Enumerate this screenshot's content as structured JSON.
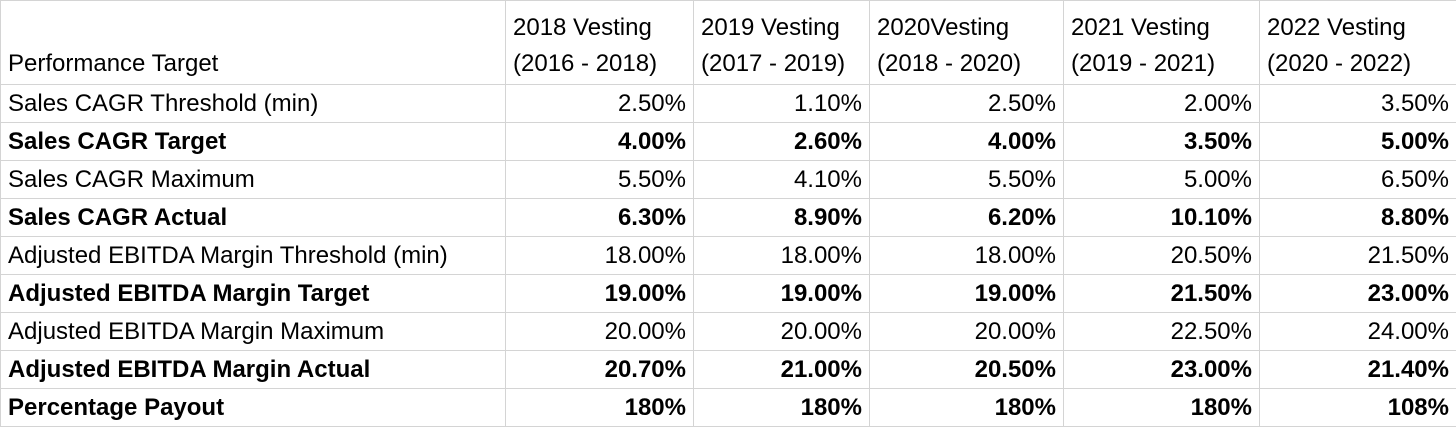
{
  "table": {
    "header": {
      "label": "Performance Target",
      "columns": [
        {
          "line1": "2018 Vesting",
          "line2": "(2016 - 2018)"
        },
        {
          "line1": "2019 Vesting",
          "line2": "(2017 - 2019)"
        },
        {
          "line1": "2020Vesting",
          "line2": "(2018 - 2020)"
        },
        {
          "line1": "2021 Vesting",
          "line2": "(2019 - 2021)"
        },
        {
          "line1": "2022 Vesting",
          "line2": "(2020 - 2022)"
        }
      ]
    },
    "rows": [
      {
        "label": "Sales CAGR Threshold (min)",
        "bold": false,
        "values": [
          "2.50%",
          "1.10%",
          "2.50%",
          "2.00%",
          "3.50%"
        ]
      },
      {
        "label": "Sales CAGR Target",
        "bold": true,
        "values": [
          "4.00%",
          "2.60%",
          "4.00%",
          "3.50%",
          "5.00%"
        ]
      },
      {
        "label": "Sales CAGR Maximum",
        "bold": false,
        "values": [
          "5.50%",
          "4.10%",
          "5.50%",
          "5.00%",
          "6.50%"
        ]
      },
      {
        "label": "Sales CAGR Actual",
        "bold": true,
        "values": [
          "6.30%",
          "8.90%",
          "6.20%",
          "10.10%",
          "8.80%"
        ]
      },
      {
        "label": "Adjusted EBITDA Margin Threshold (min)",
        "bold": false,
        "values": [
          "18.00%",
          "18.00%",
          "18.00%",
          "20.50%",
          "21.50%"
        ]
      },
      {
        "label": "Adjusted EBITDA Margin Target",
        "bold": true,
        "values": [
          "19.00%",
          "19.00%",
          "19.00%",
          "21.50%",
          "23.00%"
        ]
      },
      {
        "label": "Adjusted EBITDA Margin Maximum",
        "bold": false,
        "values": [
          "20.00%",
          "20.00%",
          "20.00%",
          "22.50%",
          "24.00%"
        ]
      },
      {
        "label": "Adjusted EBITDA Margin Actual",
        "bold": true,
        "values": [
          "20.70%",
          "21.00%",
          "20.50%",
          "23.00%",
          "21.40%"
        ]
      },
      {
        "label": "Percentage Payout",
        "bold": true,
        "values": [
          "180%",
          "180%",
          "180%",
          "180%",
          "108%"
        ]
      }
    ]
  }
}
